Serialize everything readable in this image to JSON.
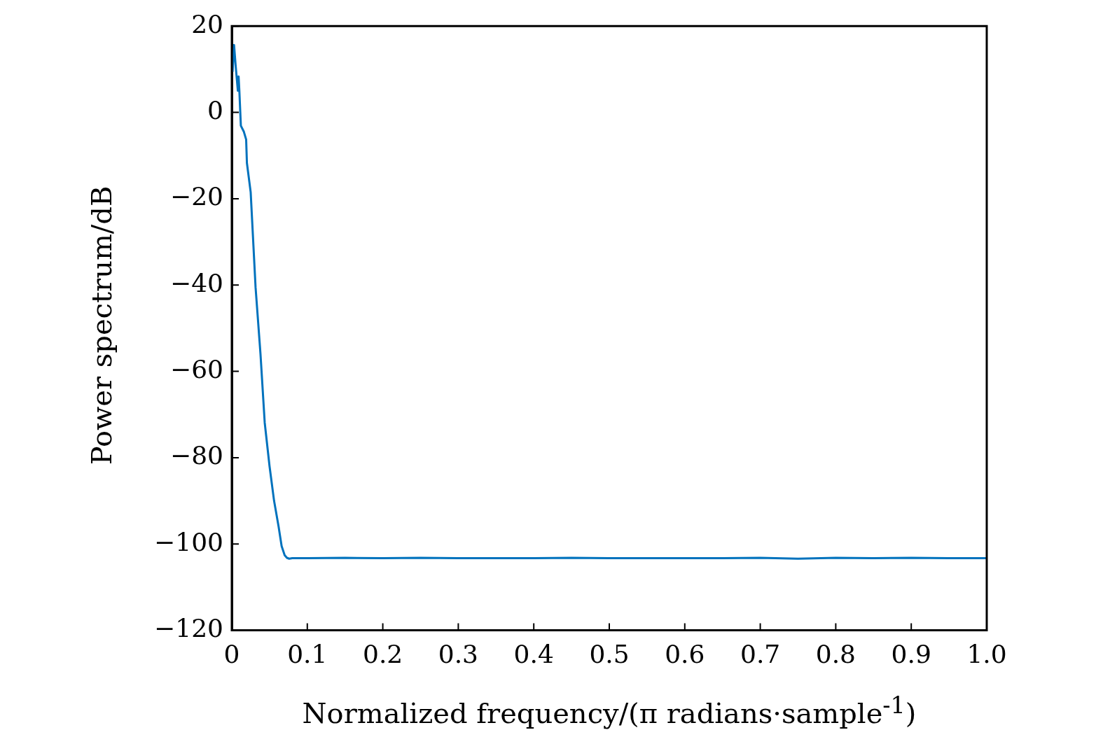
{
  "chart_data": {
    "type": "line",
    "xlabel": "Normalized frequency/(π radians·sample$^{-1}$)",
    "ylabel": "Power spectrum/dB",
    "xlim": [
      0,
      1
    ],
    "xticks": [
      0,
      0.1,
      0.2,
      0.3,
      0.4,
      0.5,
      0.6,
      0.7,
      0.8,
      0.9,
      {
        "value": 1,
        "label": "1.0"
      }
    ],
    "ylim": [
      -120,
      20
    ],
    "yticks": [
      -120,
      -100,
      -80,
      -60,
      -40,
      -20,
      0,
      20
    ],
    "grid": false,
    "legend": false,
    "marker": "none",
    "line_style": "solid",
    "series": [
      {
        "color": "#0072bd",
        "x": [
          0.001,
          0.003,
          0.005,
          0.008,
          0.009,
          0.01,
          0.012,
          0.016,
          0.019,
          0.02,
          0.025,
          0.0315,
          0.038,
          0.0436,
          0.05,
          0.056,
          0.062,
          0.066,
          0.07,
          0.073,
          0.076,
          0.08,
          0.1,
          0.15,
          0.2,
          0.25,
          0.3,
          0.35,
          0.4,
          0.45,
          0.5,
          0.55,
          0.6,
          0.65,
          0.7,
          0.75,
          0.8,
          0.85,
          0.9,
          0.95,
          1.0
        ],
        "values": [
          9.4,
          15.6,
          11,
          5,
          8.3,
          5,
          -3.1,
          -4.5,
          -6.3,
          -11.7,
          -18.5,
          -40.6,
          -56,
          -71.9,
          -82,
          -90,
          -96,
          -100.5,
          -102.6,
          -103.2,
          -103.4,
          -103.3,
          -103.3,
          -103.2,
          -103.3,
          -103.2,
          -103.3,
          -103.3,
          -103.3,
          -103.2,
          -103.3,
          -103.3,
          -103.3,
          -103.3,
          -103.2,
          -103.4,
          -103.2,
          -103.3,
          -103.2,
          -103.3,
          -103.3
        ]
      }
    ]
  }
}
